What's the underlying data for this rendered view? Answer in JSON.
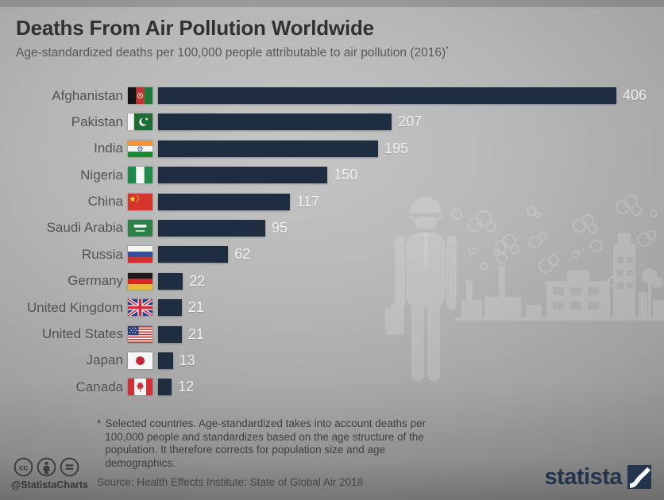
{
  "header": {
    "title": "Deaths From Air Pollution Worldwide",
    "subtitle": "Age-standardized deaths per 100,000 people attributable to air pollution (2016)",
    "subtitle_marker": "*"
  },
  "chart_data": {
    "type": "bar",
    "orientation": "horizontal",
    "title": "Deaths From Air Pollution Worldwide",
    "xlabel": "Age-standardized deaths per 100,000 people",
    "xlim": [
      0,
      406
    ],
    "grid": false,
    "legend": false,
    "value_labels_position": "end-of-bar",
    "categories": [
      "Afghanistan",
      "Pakistan",
      "India",
      "Nigeria",
      "China",
      "Saudi Arabia",
      "Russia",
      "Germany",
      "United Kingdom",
      "United States",
      "Japan",
      "Canada"
    ],
    "values": [
      406,
      207,
      195,
      150,
      117,
      95,
      62,
      22,
      21,
      21,
      13,
      12
    ],
    "flag_icons": [
      "flag-afghanistan-icon",
      "flag-pakistan-icon",
      "flag-india-icon",
      "flag-nigeria-icon",
      "flag-china-icon",
      "flag-saudi-arabia-icon",
      "flag-russia-icon",
      "flag-germany-icon",
      "flag-united-kingdom-icon",
      "flag-united-states-icon",
      "flag-japan-icon",
      "flag-canada-icon"
    ],
    "bar_color": "#1e2d40"
  },
  "footnote": {
    "marker": "*",
    "text": "Selected countries. Age-standardized takes into account deaths per 100,000 people and standardizes based on the age structure of the population. It therefore corrects for population size and age demographics."
  },
  "source": {
    "text": "Source: Health Effects Institute: State of Global Air 2018"
  },
  "branding": {
    "handle": "@StatistaCharts",
    "logo_text": "statista",
    "license_icons": [
      "cc-icon",
      "attribution-person-icon",
      "equals-icon"
    ]
  },
  "illustration": "man-with-face-mask-and-polluted-city-skyline",
  "colors": {
    "bar": "#1e2d40",
    "logo": "#25344d",
    "value_label": "#f2f2f2",
    "category_label": "#525256",
    "title": "#313134"
  }
}
